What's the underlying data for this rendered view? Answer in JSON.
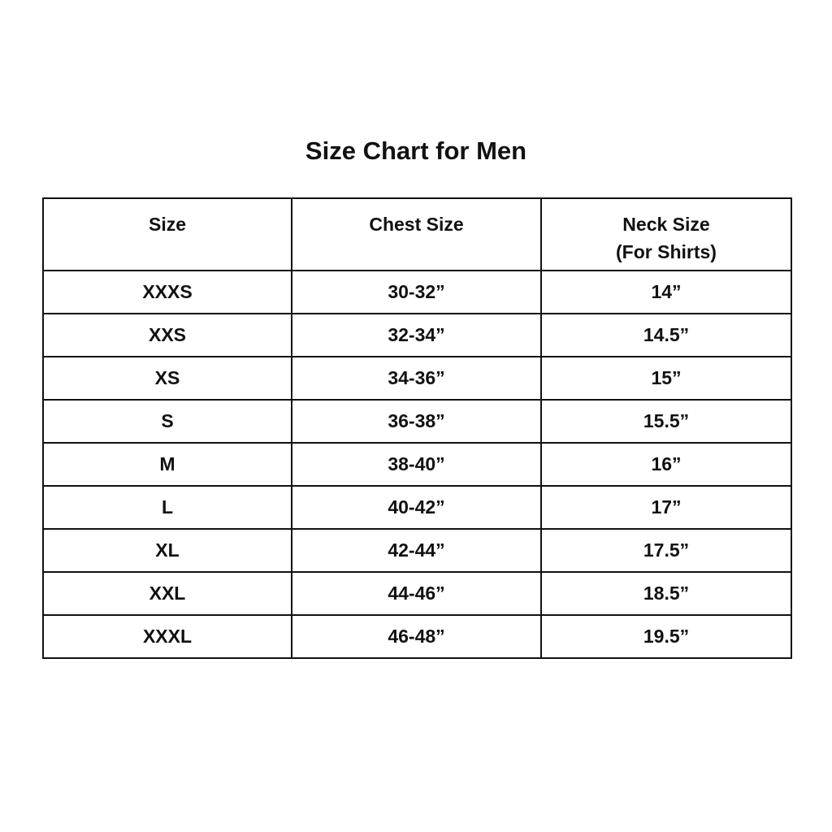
{
  "title": "Size Chart for Men",
  "headers": {
    "size": "Size",
    "chest": "Chest Size",
    "neck": "Neck Size",
    "neck_sub": "(For Shirts)"
  },
  "rows": [
    {
      "size": "XXXS",
      "chest": "30-32”",
      "neck": "14”"
    },
    {
      "size": "XXS",
      "chest": "32-34”",
      "neck": "14.5”"
    },
    {
      "size": "XS",
      "chest": "34-36”",
      "neck": "15”"
    },
    {
      "size": "S",
      "chest": "36-38”",
      "neck": "15.5”"
    },
    {
      "size": "M",
      "chest": "38-40”",
      "neck": "16”"
    },
    {
      "size": "L",
      "chest": "40-42”",
      "neck": "17”"
    },
    {
      "size": "XL",
      "chest": "42-44”",
      "neck": "17.5”"
    },
    {
      "size": "XXL",
      "chest": "44-46”",
      "neck": "18.5”"
    },
    {
      "size": "XXXL",
      "chest": "46-48”",
      "neck": "19.5”"
    }
  ]
}
